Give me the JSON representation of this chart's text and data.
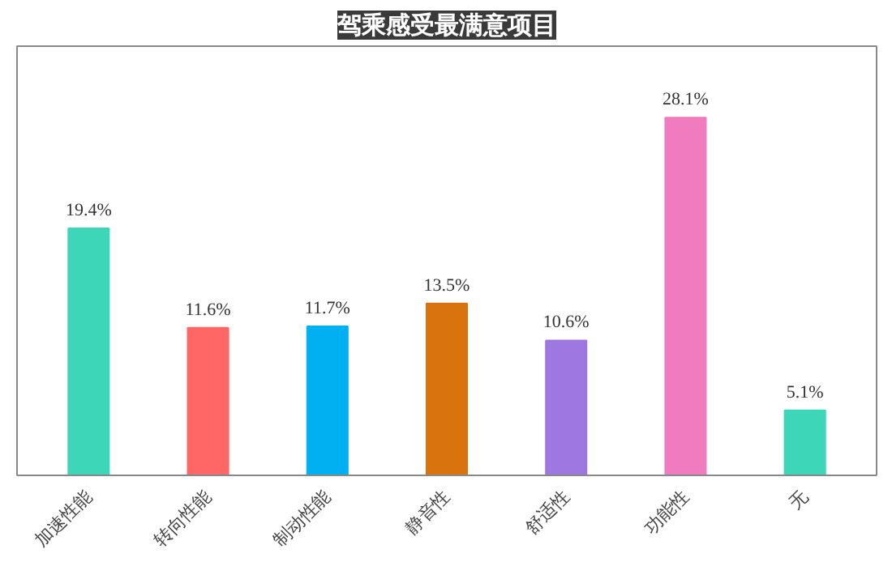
{
  "chart_data": {
    "type": "bar",
    "title": "驾乘感受最满意项目",
    "categories": [
      "加速性能",
      "转向性能",
      "制动性能",
      "静音性",
      "舒适性",
      "功能性",
      "无"
    ],
    "values": [
      19.4,
      11.6,
      11.7,
      13.5,
      10.6,
      28.1,
      5.1
    ],
    "colors": [
      "#3dd6b8",
      "#ff6666",
      "#00b0f0",
      "#d9730d",
      "#9e77e0",
      "#f07cbf",
      "#3dd6b8"
    ],
    "value_labels": [
      "19.4%",
      "11.6%",
      "11.7%",
      "13.5%",
      "10.6%",
      "28.1%",
      "5.1%"
    ],
    "grid": false
  }
}
